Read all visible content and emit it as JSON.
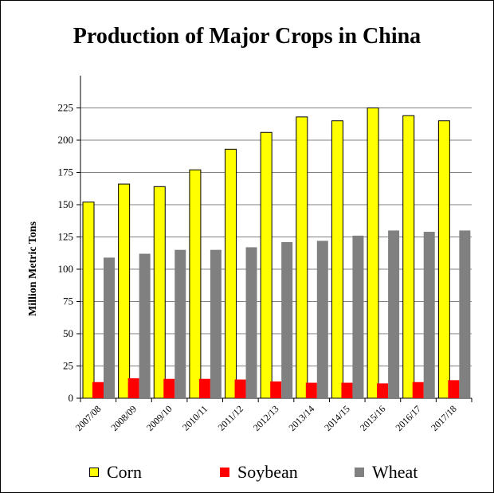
{
  "chart_data": {
    "type": "bar",
    "title": "Production of Major Crops in China",
    "xlabel": "",
    "ylabel": "Million Metric Tons",
    "ylim": [
      0,
      250
    ],
    "yticks": [
      0,
      25,
      50,
      75,
      100,
      125,
      150,
      175,
      200,
      225
    ],
    "grid": true,
    "legend": "bottom",
    "categories": [
      "2007/08",
      "2008/09",
      "2009/10",
      "2010/11",
      "2011/12",
      "2012/13",
      "2013/14",
      "2014/15",
      "2015/16",
      "2016/17",
      "2017/18"
    ],
    "series": [
      {
        "name": "Corn",
        "color": "#ffff00",
        "values": [
          152,
          166,
          164,
          177,
          193,
          206,
          218,
          215,
          225,
          219,
          215
        ]
      },
      {
        "name": "Soybean",
        "color": "#ff0000",
        "values": [
          12.5,
          15.5,
          15,
          15,
          14.5,
          13,
          12,
          12,
          11.5,
          12.5,
          14
        ]
      },
      {
        "name": "Wheat",
        "color": "#808080",
        "values": [
          109,
          112,
          115,
          115,
          117,
          121,
          122,
          126,
          130,
          129,
          130
        ]
      }
    ]
  }
}
